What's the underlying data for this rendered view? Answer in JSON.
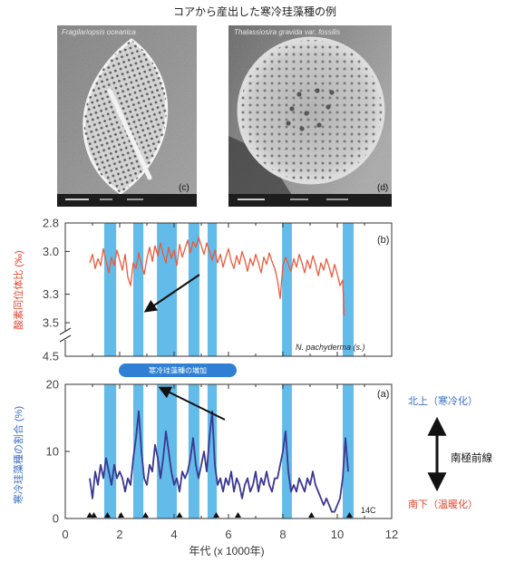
{
  "figure": {
    "title": "コアから産出した寒冷珪藻種の例",
    "micrographs": [
      {
        "panel": "(c)",
        "species": "Fragilariopsis oceanica"
      },
      {
        "panel": "(d)",
        "species": "Thalassiosira gravida var. fossilis"
      }
    ],
    "callout": "寒冷珪藻種の増加",
    "front_shift": {
      "north_label": "北上（寒冷化）",
      "front_label": "南極前線",
      "south_label": "南下（温暖化）"
    },
    "colors": {
      "band": "#62bbe9",
      "callout_fill": "#2f80d4",
      "north_text": "#3c6fc6",
      "south_text": "#e2462e"
    }
  },
  "chart_data": {
    "type": "line",
    "xlabel": "年代 (x 1000年)",
    "x_ticks": [
      "0",
      "2",
      "4",
      "6",
      "8",
      "10",
      "12"
    ],
    "xlim": [
      0,
      12
    ],
    "highlight_intervals": [
      [
        1.43,
        1.87
      ],
      [
        2.5,
        2.87
      ],
      [
        3.37,
        4.1
      ],
      [
        4.53,
        4.93
      ],
      [
        5.23,
        5.57
      ],
      [
        7.97,
        8.33
      ],
      [
        10.2,
        10.6
      ]
    ],
    "panels": [
      {
        "panel": "(b)",
        "ylabel": "酸素同位体比 (‰)",
        "yticks": [
          "2.8",
          "3.0",
          "3.3",
          "3.5",
          "4.5"
        ],
        "ylim": [
          2.8,
          4.5
        ],
        "y_inverted": true,
        "y_axis_break_between": [
          3.5,
          4.5
        ],
        "annotation": "N. pachyderma (s.)",
        "series": [
          {
            "color": "#ea5a3c",
            "x": [
              0.9,
              1.0,
              1.1,
              1.2,
              1.3,
              1.4,
              1.5,
              1.6,
              1.7,
              1.8,
              1.9,
              2.0,
              2.1,
              2.2,
              2.3,
              2.4,
              2.5,
              2.6,
              2.7,
              2.8,
              2.9,
              3.0,
              3.1,
              3.2,
              3.3,
              3.4,
              3.5,
              3.6,
              3.7,
              3.8,
              3.9,
              4.0,
              4.1,
              4.2,
              4.3,
              4.4,
              4.5,
              4.6,
              4.7,
              4.8,
              4.9,
              5.0,
              5.1,
              5.2,
              5.3,
              5.4,
              5.5,
              5.6,
              5.7,
              5.8,
              5.9,
              6.0,
              6.1,
              6.2,
              6.3,
              6.4,
              6.5,
              6.6,
              6.7,
              6.8,
              6.9,
              7.0,
              7.1,
              7.2,
              7.3,
              7.4,
              7.5,
              7.6,
              7.7,
              7.8,
              7.9,
              8.0,
              8.1,
              8.2,
              8.3,
              8.4,
              8.5,
              8.6,
              8.7,
              8.8,
              8.9,
              9.0,
              9.1,
              9.2,
              9.3,
              9.4,
              9.5,
              9.6,
              9.7,
              9.8,
              9.9,
              10.0,
              10.1,
              10.2,
              10.25
            ],
            "y": [
              3.08,
              3.02,
              3.12,
              3.05,
              3.1,
              2.98,
              3.07,
              3.15,
              3.04,
              3.1,
              2.99,
              3.06,
              3.13,
              3.02,
              3.18,
              3.24,
              3.08,
              3.12,
              3.01,
              3.09,
              3.16,
              3.05,
              2.97,
              3.07,
              2.96,
              3.03,
              2.94,
              3.02,
              3.08,
              2.97,
              3.05,
              2.99,
              3.1,
              2.95,
              3.04,
              2.98,
              2.92,
              3.01,
              2.93,
              2.97,
              2.9,
              2.96,
              3.02,
              2.94,
              3.0,
              3.06,
              2.99,
              3.08,
              3.02,
              3.11,
              3.04,
              2.98,
              3.07,
              3.12,
              3.03,
              3.09,
              3.0,
              3.06,
              3.14,
              3.05,
              3.1,
              3.02,
              3.08,
              3.15,
              3.04,
              3.09,
              3.01,
              3.07,
              3.12,
              3.2,
              3.33,
              3.1,
              3.04,
              3.09,
              3.14,
              3.05,
              3.11,
              3.02,
              3.08,
              3.15,
              3.06,
              3.12,
              3.03,
              3.09,
              3.17,
              3.08,
              3.13,
              3.05,
              3.11,
              3.18,
              3.09,
              3.16,
              3.24,
              3.2,
              3.45
            ]
          }
        ]
      },
      {
        "panel": "(a)",
        "ylabel": "寒冷珪藻種の割合 (%)",
        "yticks": [
          "0",
          "10",
          "20"
        ],
        "ylim": [
          0,
          20
        ],
        "annotation": "14C",
        "dated_ages": [
          0.9,
          1.05,
          1.55,
          2.05,
          2.95,
          4.2,
          5.55,
          6.35,
          9.05,
          10.45
        ],
        "series": [
          {
            "color": "#3b3791",
            "x": [
              0.9,
              1.0,
              1.1,
              1.2,
              1.3,
              1.4,
              1.5,
              1.6,
              1.7,
              1.8,
              1.9,
              2.0,
              2.1,
              2.2,
              2.3,
              2.4,
              2.5,
              2.6,
              2.7,
              2.8,
              2.9,
              3.0,
              3.1,
              3.2,
              3.3,
              3.4,
              3.5,
              3.6,
              3.7,
              3.8,
              3.9,
              4.0,
              4.1,
              4.2,
              4.3,
              4.4,
              4.5,
              4.6,
              4.7,
              4.8,
              4.9,
              5.0,
              5.1,
              5.2,
              5.3,
              5.4,
              5.5,
              5.6,
              5.7,
              5.8,
              5.9,
              6.0,
              6.1,
              6.2,
              6.3,
              6.4,
              6.5,
              6.6,
              6.7,
              6.8,
              6.9,
              7.0,
              7.1,
              7.2,
              7.3,
              7.4,
              7.5,
              7.6,
              7.7,
              7.8,
              7.9,
              8.0,
              8.1,
              8.2,
              8.3,
              8.4,
              8.5,
              8.6,
              8.7,
              8.8,
              8.9,
              9.0,
              9.1,
              9.2,
              9.3,
              9.4,
              9.5,
              9.6,
              9.7,
              9.8,
              9.9,
              10.0,
              10.1,
              10.2,
              10.3,
              10.4
            ],
            "y": [
              6,
              3,
              7,
              5,
              8,
              6,
              9,
              7,
              5,
              8,
              6,
              7,
              6,
              4,
              6,
              5,
              9,
              12,
              16,
              10,
              6,
              5,
              8,
              7,
              11,
              9,
              6,
              9,
              13,
              10,
              7,
              5,
              6,
              4,
              7,
              6,
              7,
              9,
              12,
              8,
              6,
              8,
              10,
              7,
              12,
              16,
              8,
              5,
              6,
              4,
              6,
              5,
              7,
              4,
              6,
              5,
              3,
              5,
              6,
              4,
              5,
              7,
              4,
              6,
              5,
              7,
              5,
              4,
              6,
              6,
              8,
              10,
              13,
              7,
              4,
              5,
              4,
              6,
              5,
              4,
              6,
              5,
              7,
              5,
              4,
              3,
              2,
              3,
              2,
              1,
              1,
              2,
              3,
              6,
              12,
              7
            ]
          }
        ]
      }
    ]
  }
}
